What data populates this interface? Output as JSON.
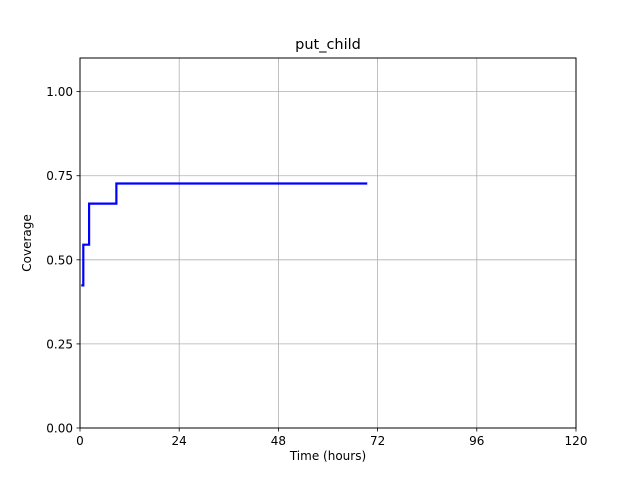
{
  "chart_data": {
    "type": "line",
    "title": "put_child",
    "xlabel": "Time (hours)",
    "ylabel": "Coverage",
    "xlim": [
      0,
      120
    ],
    "ylim": [
      0,
      1.1
    ],
    "xticks": [
      0,
      24,
      48,
      72,
      96,
      120
    ],
    "xtick_labels": [
      "0",
      "24",
      "48",
      "72",
      "96",
      "120"
    ],
    "yticks": [
      0,
      0.25,
      0.5,
      0.75,
      1.0
    ],
    "ytick_labels": [
      "0.00",
      "0.25",
      "0.50",
      "0.75",
      "1.00"
    ],
    "grid": true,
    "series": [
      {
        "color": "#0000ff",
        "step": true,
        "x": [
          0.3,
          0.8,
          2.2,
          8.8,
          69.5
        ],
        "y": [
          0.424,
          0.545,
          0.667,
          0.727,
          0.727
        ]
      }
    ]
  }
}
